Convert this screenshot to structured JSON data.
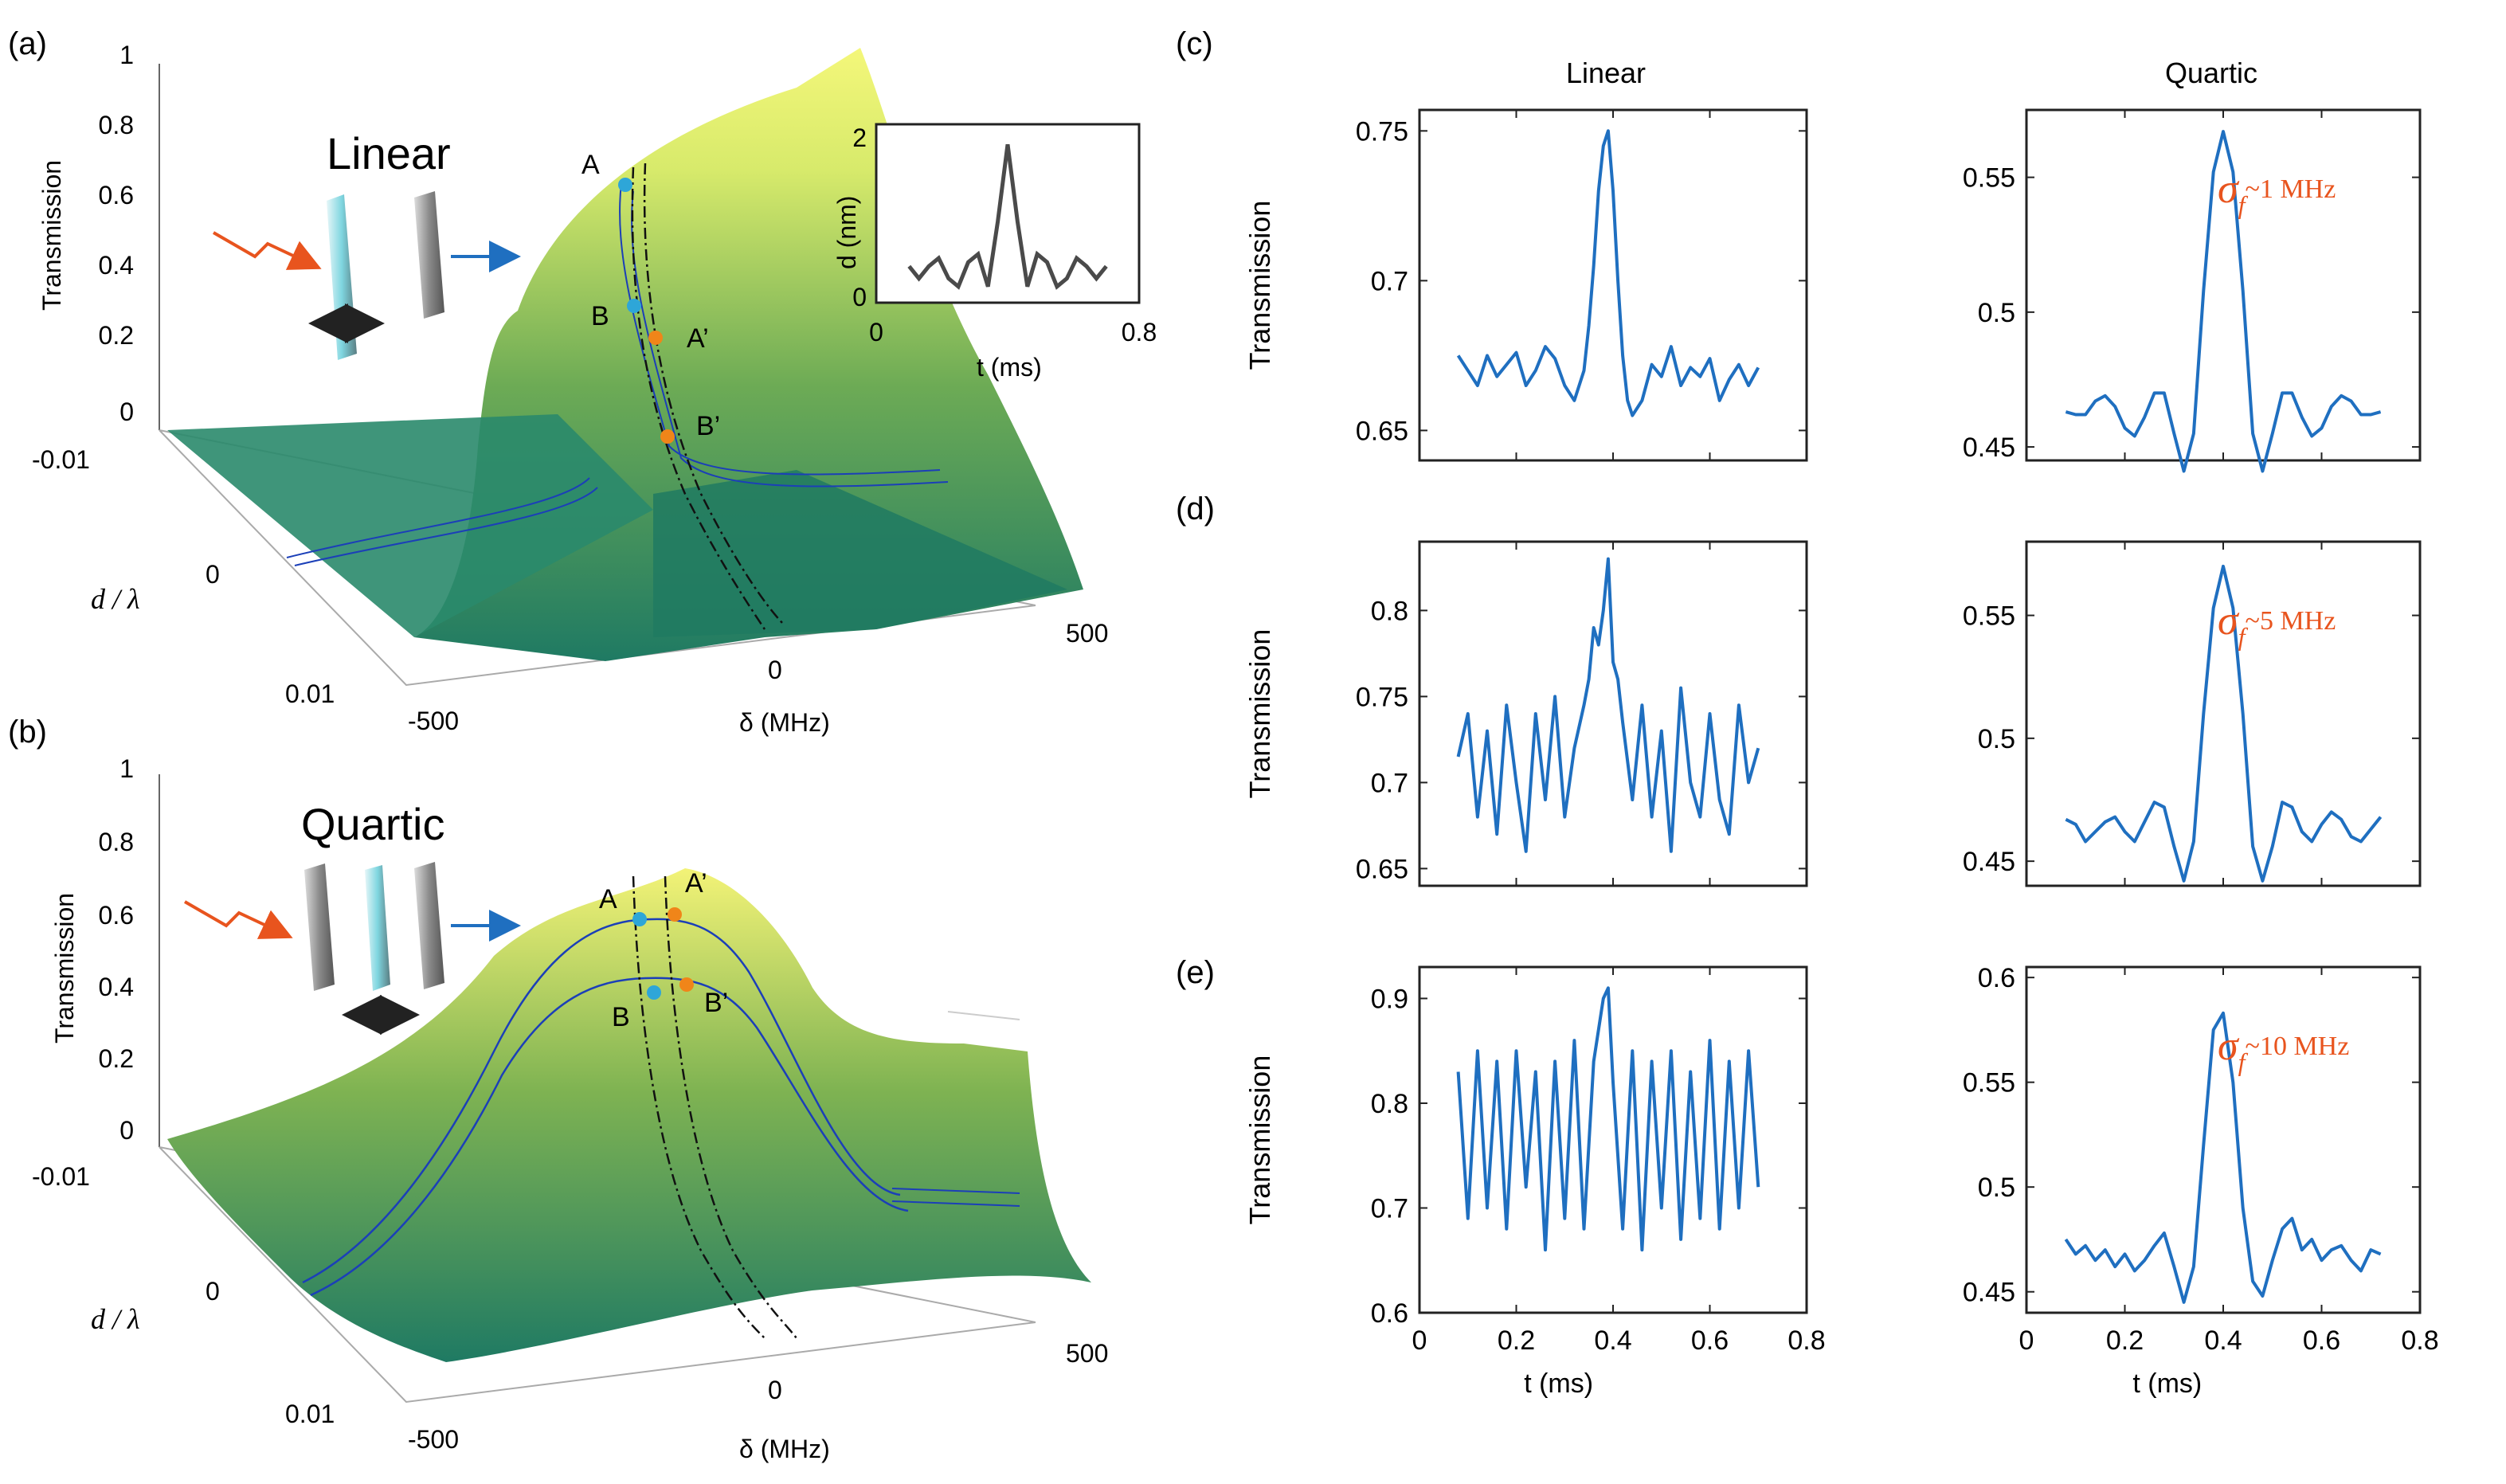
{
  "colors": {
    "trace": "#1f6fc0",
    "accent": "#e8541e",
    "inset_line": "#4a4a4a",
    "surface_low": "#1f7a63",
    "surface_high": "#f4f77a",
    "point_blue": "#2ea6d8",
    "point_orange": "#f08519",
    "contour": "#1b3fb8"
  },
  "panel_a": {
    "letter": "(a)",
    "title": "Linear",
    "zlabel": "Transmission",
    "ylabel": "d / λ",
    "xlabel": "δ (MHz)",
    "z_ticks": [
      "1",
      "0.8",
      "0.6",
      "0.4",
      "0.2",
      "0"
    ],
    "y_ticks": [
      "-0.01",
      "0",
      "0.01"
    ],
    "x_ticks": [
      "-500",
      "0",
      "500"
    ],
    "points": [
      "A",
      "B",
      "A’",
      "B’"
    ],
    "inset": {
      "ylabel": "d (nm)",
      "xlabel": "t (ms)",
      "x_ticks": [
        "0",
        "0.8"
      ],
      "y_ticks": [
        "2",
        "0"
      ]
    }
  },
  "panel_b": {
    "letter": "(b)",
    "title": "Quartic",
    "zlabel": "Transmission",
    "ylabel": "d / λ",
    "xlabel": "δ (MHz)",
    "z_ticks": [
      "1",
      "0.8",
      "0.6",
      "0.4",
      "0.2",
      "0"
    ],
    "y_ticks": [
      "-0.01",
      "0",
      "0.01"
    ],
    "x_ticks": [
      "-500",
      "0",
      "500"
    ],
    "points": [
      "A",
      "A’",
      "B",
      "B’"
    ]
  },
  "column_titles": [
    "Linear",
    "Quartic"
  ],
  "row_letters": [
    "(c)",
    "(d)",
    "(e)"
  ],
  "sigma_labels": [
    "~1 MHz",
    "~5 MHz",
    "~10 MHz"
  ],
  "sigma_symbol": "σ",
  "sigma_sub": "f",
  "chart_data": [
    {
      "type": "line",
      "id": "c-linear",
      "ylabel": "Transmission",
      "xlim": [
        0,
        0.8
      ],
      "ylim": [
        0.64,
        0.757
      ],
      "y_ticks": [
        0.65,
        0.7,
        0.75
      ],
      "y_tick_labels": [
        "0.65",
        "0.7",
        "0.75"
      ],
      "x": [
        0.08,
        0.1,
        0.12,
        0.14,
        0.16,
        0.18,
        0.2,
        0.22,
        0.24,
        0.26,
        0.28,
        0.3,
        0.32,
        0.34,
        0.35,
        0.36,
        0.37,
        0.38,
        0.39,
        0.4,
        0.41,
        0.42,
        0.43,
        0.44,
        0.46,
        0.48,
        0.5,
        0.52,
        0.54,
        0.56,
        0.58,
        0.6,
        0.62,
        0.64,
        0.66,
        0.68,
        0.7
      ],
      "y": [
        0.675,
        0.67,
        0.665,
        0.675,
        0.668,
        0.672,
        0.676,
        0.665,
        0.67,
        0.678,
        0.674,
        0.665,
        0.66,
        0.67,
        0.685,
        0.705,
        0.73,
        0.745,
        0.75,
        0.73,
        0.7,
        0.675,
        0.66,
        0.655,
        0.66,
        0.672,
        0.668,
        0.678,
        0.665,
        0.671,
        0.668,
        0.674,
        0.66,
        0.667,
        0.672,
        0.665,
        0.671
      ]
    },
    {
      "type": "line",
      "id": "c-quartic",
      "xlim": [
        0,
        0.8
      ],
      "ylim": [
        0.445,
        0.575
      ],
      "y_ticks": [
        0.45,
        0.5,
        0.55
      ],
      "y_tick_labels": [
        "0.45",
        "0.5",
        "0.55"
      ],
      "x": [
        0.08,
        0.1,
        0.12,
        0.14,
        0.16,
        0.18,
        0.2,
        0.22,
        0.24,
        0.26,
        0.28,
        0.3,
        0.32,
        0.34,
        0.36,
        0.38,
        0.4,
        0.42,
        0.44,
        0.46,
        0.48,
        0.5,
        0.52,
        0.54,
        0.56,
        0.58,
        0.6,
        0.62,
        0.64,
        0.66,
        0.68,
        0.7,
        0.72
      ],
      "y": [
        0.463,
        0.462,
        0.462,
        0.467,
        0.469,
        0.465,
        0.457,
        0.454,
        0.461,
        0.47,
        0.47,
        0.455,
        0.441,
        0.455,
        0.508,
        0.552,
        0.567,
        0.552,
        0.508,
        0.455,
        0.441,
        0.455,
        0.47,
        0.47,
        0.461,
        0.454,
        0.457,
        0.465,
        0.469,
        0.467,
        0.462,
        0.462,
        0.463
      ]
    },
    {
      "type": "line",
      "id": "d-linear",
      "ylabel": "Transmission",
      "xlim": [
        0,
        0.8
      ],
      "ylim": [
        0.64,
        0.84
      ],
      "y_ticks": [
        0.65,
        0.7,
        0.75,
        0.8
      ],
      "y_tick_labels": [
        "0.65",
        "0.7",
        "0.75",
        "0.8"
      ],
      "x": [
        0.08,
        0.1,
        0.12,
        0.14,
        0.16,
        0.18,
        0.2,
        0.22,
        0.24,
        0.26,
        0.28,
        0.3,
        0.32,
        0.34,
        0.35,
        0.36,
        0.37,
        0.38,
        0.39,
        0.4,
        0.41,
        0.42,
        0.44,
        0.46,
        0.48,
        0.5,
        0.52,
        0.54,
        0.56,
        0.58,
        0.6,
        0.62,
        0.64,
        0.66,
        0.68,
        0.7
      ],
      "y": [
        0.715,
        0.74,
        0.68,
        0.73,
        0.67,
        0.745,
        0.7,
        0.66,
        0.74,
        0.69,
        0.75,
        0.68,
        0.72,
        0.745,
        0.76,
        0.79,
        0.78,
        0.8,
        0.83,
        0.77,
        0.76,
        0.735,
        0.69,
        0.745,
        0.68,
        0.73,
        0.66,
        0.755,
        0.7,
        0.68,
        0.74,
        0.69,
        0.67,
        0.745,
        0.7,
        0.72
      ]
    },
    {
      "type": "line",
      "id": "d-quartic",
      "xlim": [
        0,
        0.8
      ],
      "ylim": [
        0.44,
        0.58
      ],
      "y_ticks": [
        0.45,
        0.5,
        0.55
      ],
      "y_tick_labels": [
        "0.45",
        "0.5",
        "0.55"
      ],
      "x": [
        0.08,
        0.1,
        0.12,
        0.14,
        0.16,
        0.18,
        0.2,
        0.22,
        0.24,
        0.26,
        0.28,
        0.3,
        0.32,
        0.34,
        0.36,
        0.38,
        0.4,
        0.42,
        0.44,
        0.46,
        0.48,
        0.5,
        0.52,
        0.54,
        0.56,
        0.58,
        0.6,
        0.62,
        0.64,
        0.66,
        0.68,
        0.7,
        0.72
      ],
      "y": [
        0.467,
        0.465,
        0.458,
        0.462,
        0.466,
        0.468,
        0.462,
        0.458,
        0.466,
        0.474,
        0.472,
        0.456,
        0.442,
        0.458,
        0.51,
        0.553,
        0.57,
        0.553,
        0.51,
        0.456,
        0.442,
        0.456,
        0.474,
        0.472,
        0.462,
        0.458,
        0.465,
        0.47,
        0.467,
        0.46,
        0.458,
        0.463,
        0.468
      ]
    },
    {
      "type": "line",
      "id": "e-linear",
      "ylabel": "Transmission",
      "xlim": [
        0,
        0.8
      ],
      "ylim": [
        0.6,
        0.93
      ],
      "x_ticks": [
        0,
        0.2,
        0.4,
        0.6,
        0.8
      ],
      "x_tick_labels": [
        "0",
        "0.2",
        "0.4",
        "0.6",
        "0.8"
      ],
      "xlabel": "t (ms)",
      "y_ticks": [
        0.6,
        0.7,
        0.8,
        0.9
      ],
      "y_tick_labels": [
        "0.6",
        "0.7",
        "0.8",
        "0.9"
      ],
      "x": [
        0.08,
        0.1,
        0.12,
        0.14,
        0.16,
        0.18,
        0.2,
        0.22,
        0.24,
        0.26,
        0.28,
        0.3,
        0.32,
        0.34,
        0.36,
        0.38,
        0.39,
        0.4,
        0.42,
        0.44,
        0.46,
        0.48,
        0.5,
        0.52,
        0.54,
        0.56,
        0.58,
        0.6,
        0.62,
        0.64,
        0.66,
        0.68,
        0.7
      ],
      "y": [
        0.83,
        0.69,
        0.85,
        0.7,
        0.84,
        0.68,
        0.85,
        0.72,
        0.83,
        0.66,
        0.84,
        0.69,
        0.86,
        0.68,
        0.84,
        0.9,
        0.91,
        0.82,
        0.68,
        0.85,
        0.66,
        0.84,
        0.7,
        0.85,
        0.67,
        0.83,
        0.69,
        0.86,
        0.68,
        0.84,
        0.7,
        0.85,
        0.72
      ]
    },
    {
      "type": "line",
      "id": "e-quartic",
      "xlim": [
        0,
        0.8
      ],
      "ylim": [
        0.44,
        0.605
      ],
      "x_ticks": [
        0,
        0.2,
        0.4,
        0.6,
        0.8
      ],
      "x_tick_labels": [
        "0",
        "0.2",
        "0.4",
        "0.6",
        "0.8"
      ],
      "xlabel": "t (ms)",
      "y_ticks": [
        0.45,
        0.5,
        0.55,
        0.6
      ],
      "y_tick_labels": [
        "0.45",
        "0.5",
        "0.55",
        "0.6"
      ],
      "x": [
        0.08,
        0.1,
        0.12,
        0.14,
        0.16,
        0.18,
        0.2,
        0.22,
        0.24,
        0.26,
        0.28,
        0.3,
        0.32,
        0.34,
        0.36,
        0.38,
        0.4,
        0.42,
        0.44,
        0.46,
        0.48,
        0.5,
        0.52,
        0.54,
        0.56,
        0.58,
        0.6,
        0.62,
        0.64,
        0.66,
        0.68,
        0.7,
        0.72
      ],
      "y": [
        0.475,
        0.468,
        0.472,
        0.465,
        0.47,
        0.462,
        0.468,
        0.46,
        0.465,
        0.472,
        0.478,
        0.462,
        0.445,
        0.462,
        0.52,
        0.575,
        0.583,
        0.55,
        0.49,
        0.455,
        0.448,
        0.465,
        0.48,
        0.485,
        0.47,
        0.475,
        0.465,
        0.47,
        0.472,
        0.465,
        0.46,
        0.47,
        0.468
      ]
    },
    {
      "type": "line",
      "id": "a-inset",
      "xlim": [
        0,
        0.8
      ],
      "ylim": [
        0,
        2
      ],
      "x": [
        0.1,
        0.13,
        0.16,
        0.19,
        0.22,
        0.25,
        0.28,
        0.31,
        0.34,
        0.37,
        0.4,
        0.43,
        0.46,
        0.49,
        0.52,
        0.55,
        0.58,
        0.61,
        0.64,
        0.67,
        0.7
      ],
      "y": [
        0.35,
        0.2,
        0.35,
        0.45,
        0.2,
        0.1,
        0.4,
        0.5,
        0.1,
        0.9,
        1.85,
        0.9,
        0.1,
        0.5,
        0.4,
        0.1,
        0.2,
        0.45,
        0.35,
        0.2,
        0.35
      ]
    }
  ]
}
